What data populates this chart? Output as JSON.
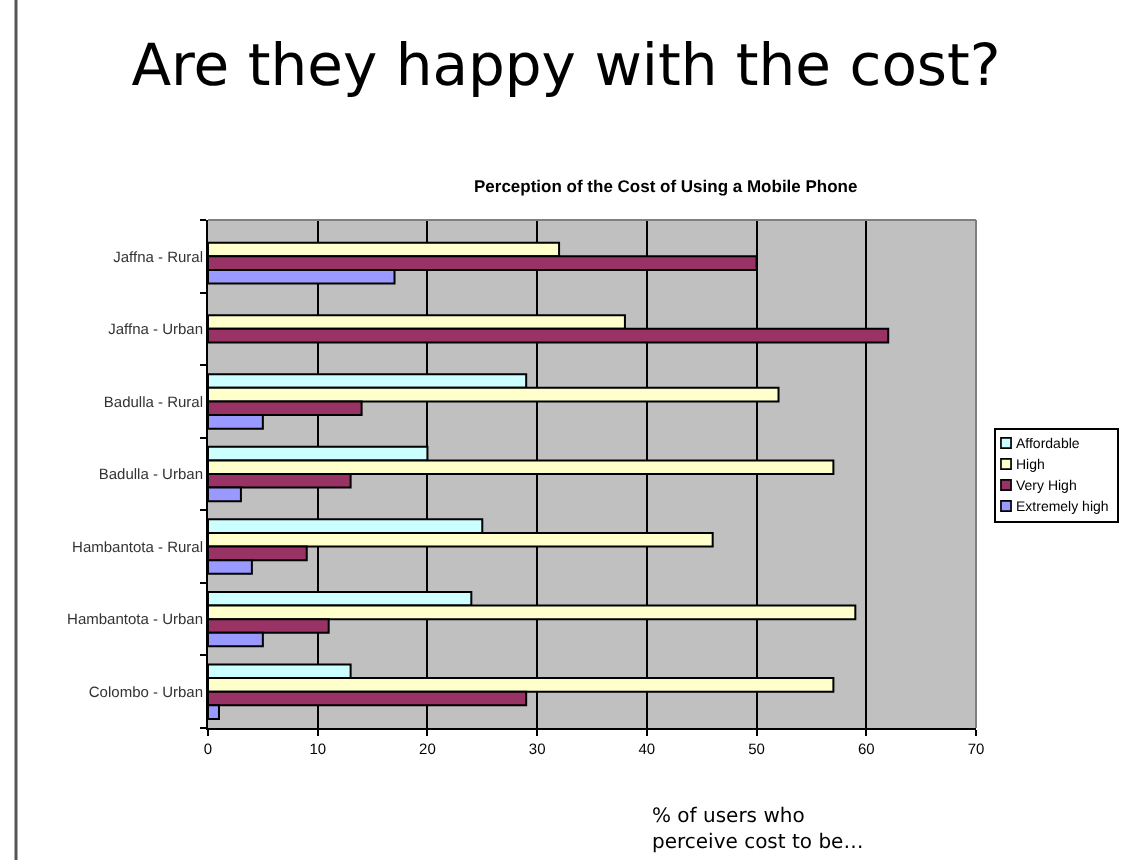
{
  "chart_data": {
    "type": "bar",
    "orientation": "horizontal",
    "title": "Are they happy with the cost?",
    "subtitle": "Perception of the Cost of Using a Mobile Phone",
    "xlabel": "% of users who perceive cost to be…",
    "categories": [
      "Jaffna - Rural",
      "Jaffna - Urban",
      "Badulla - Rural",
      "Badulla - Urban",
      "Hambantota - Rural",
      "Hambantota - Urban",
      "Colombo - Urban"
    ],
    "series": [
      {
        "name": "Affordable",
        "color": "#ccffff",
        "values": [
          null,
          null,
          29,
          20,
          25,
          24,
          13
        ]
      },
      {
        "name": "High",
        "color": "#ffffcc",
        "values": [
          32,
          38,
          52,
          57,
          46,
          59,
          57
        ]
      },
      {
        "name": "Very High",
        "color": "#993366",
        "values": [
          50,
          62,
          14,
          13,
          9,
          11,
          29
        ]
      },
      {
        "name": "Extremely high",
        "color": "#9999ff",
        "values": [
          17,
          null,
          5,
          3,
          4,
          5,
          1
        ]
      }
    ],
    "xlim": [
      0,
      70
    ],
    "xticks": [
      0,
      10,
      20,
      30,
      40,
      50,
      60,
      70
    ],
    "grid": "x",
    "legend": "right"
  }
}
